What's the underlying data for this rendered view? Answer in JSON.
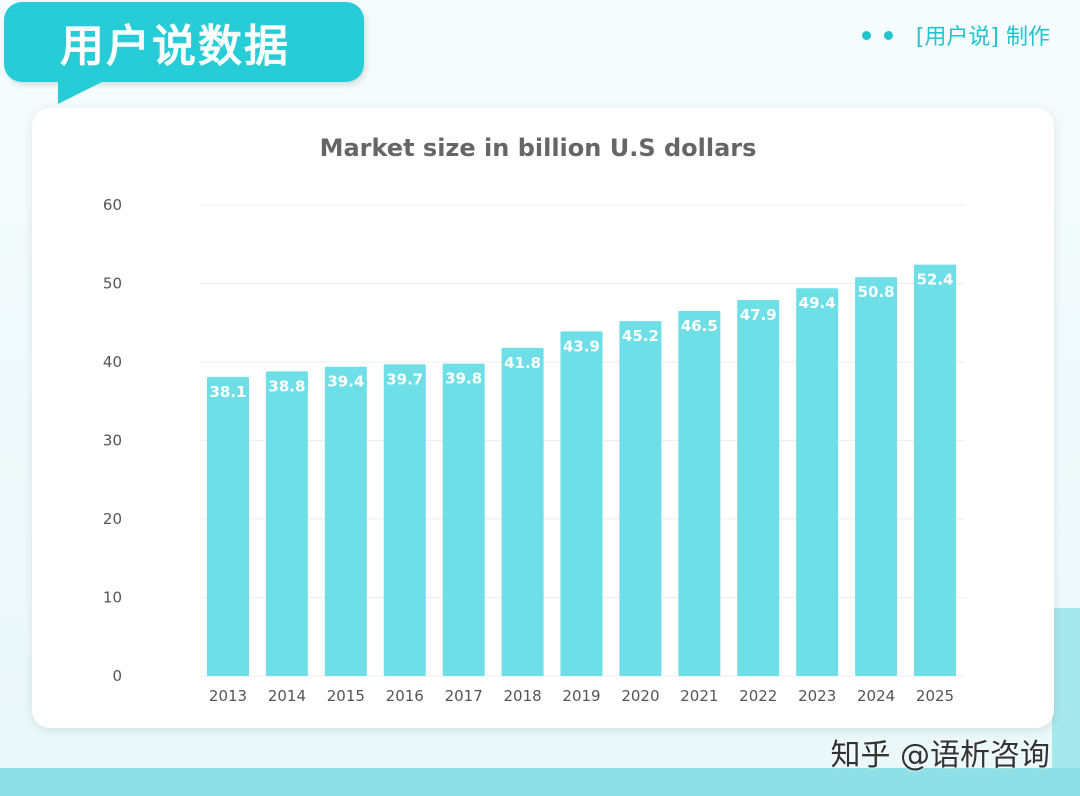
{
  "header": {
    "title": "用户说数据",
    "maker": "[用户说] 制作"
  },
  "footer": {
    "credit": "知乎 @语析咨询"
  },
  "colors": {
    "bar": "#6edfe6",
    "accent": "#26cdd7",
    "bar_label": "#ffffff"
  },
  "chart_data": {
    "type": "bar",
    "title": "Market size in billion U.S dollars",
    "categories": [
      "2013",
      "2014",
      "2015",
      "2016",
      "2017",
      "2018",
      "2019",
      "2020",
      "2021",
      "2022",
      "2023",
      "2024",
      "2025"
    ],
    "values": [
      38.1,
      38.8,
      39.4,
      39.7,
      39.8,
      41.8,
      43.9,
      45.2,
      46.5,
      47.9,
      49.4,
      50.8,
      52.4
    ],
    "yticks": [
      0,
      10,
      20,
      30,
      40,
      50,
      60
    ],
    "ylim": [
      0,
      60
    ],
    "grid": true,
    "data_labels": true
  }
}
